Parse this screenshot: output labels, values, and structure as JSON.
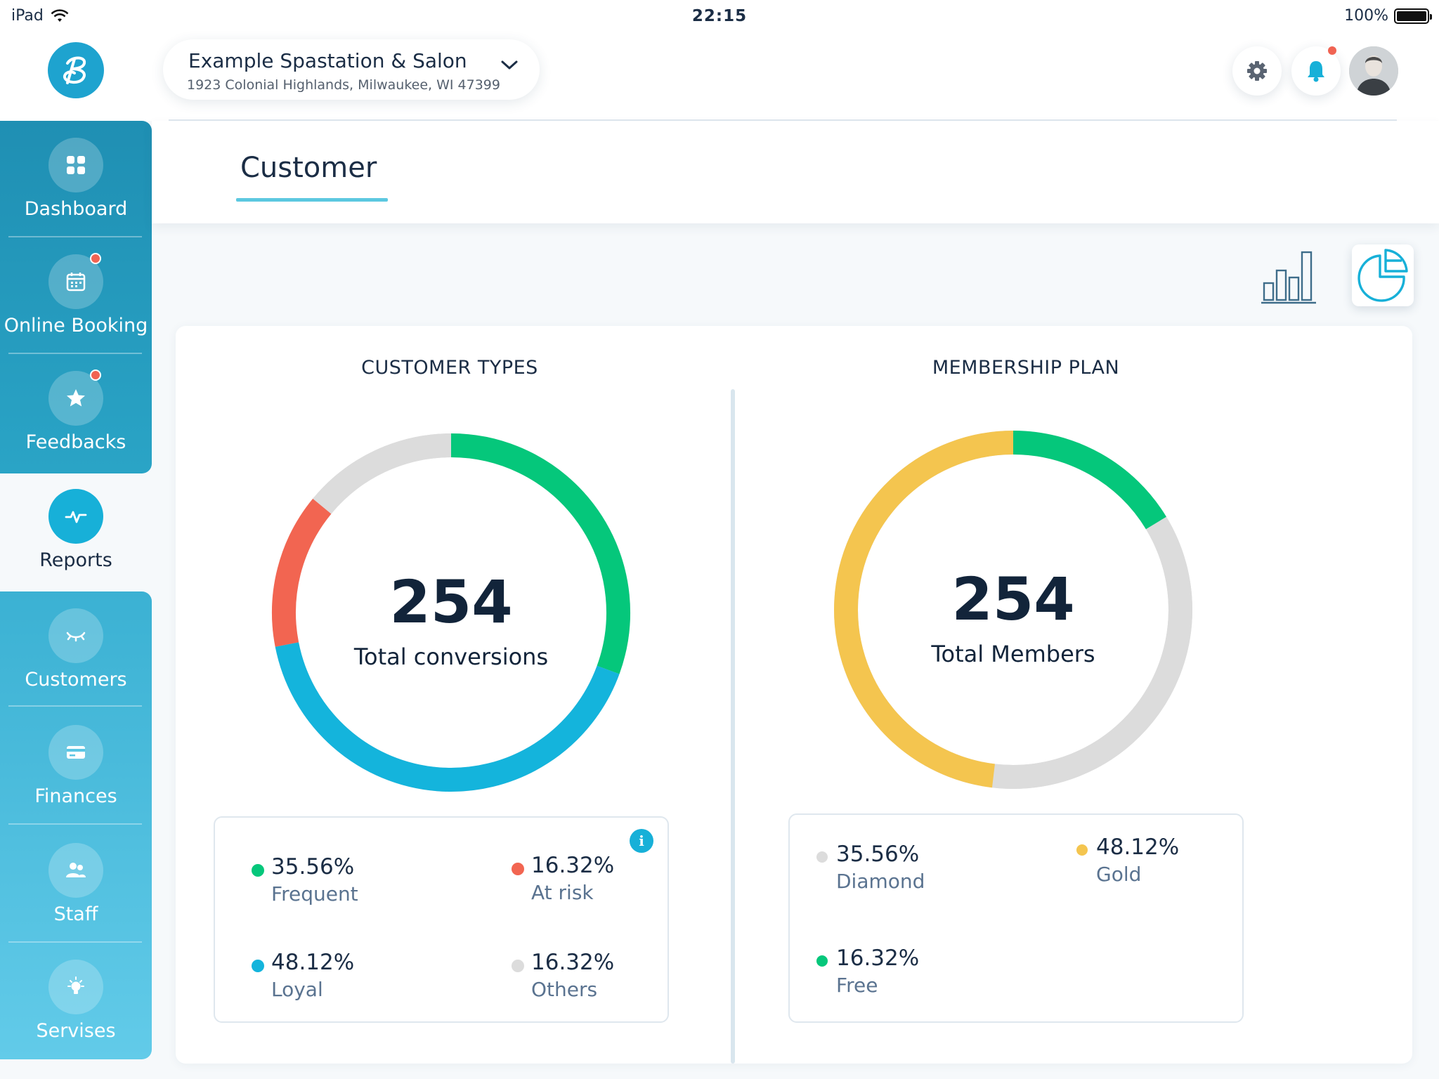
{
  "status_bar": {
    "device": "iPad",
    "time": "22:15",
    "battery": "100%"
  },
  "header": {
    "location_name": "Example Spastation & Salon",
    "location_address": "1923 Colonial Highlands, Milwaukee, WI 47399",
    "icons": [
      "settings-icon",
      "bell-icon",
      "avatar"
    ]
  },
  "sidebar": {
    "items": [
      {
        "label": "Dashboard",
        "icon": "grid-icon",
        "badge": false
      },
      {
        "label": "Online Booking",
        "icon": "calendar-icon",
        "badge": true
      },
      {
        "label": "Feedbacks",
        "icon": "star-icon",
        "badge": true
      },
      {
        "label": "Reports",
        "icon": "pulse-icon",
        "badge": false,
        "active": true
      },
      {
        "label": "Customers",
        "icon": "eye-closed-icon",
        "badge": false
      },
      {
        "label": "Finances",
        "icon": "card-icon",
        "badge": false
      },
      {
        "label": "Staff",
        "icon": "people-icon",
        "badge": false
      },
      {
        "label": "Servises",
        "icon": "bulb-icon",
        "badge": false
      }
    ]
  },
  "page": {
    "title": "Customer",
    "view_modes": [
      "bar-chart-icon",
      "pie-chart-icon"
    ],
    "active_view": "pie-chart-icon"
  },
  "colors": {
    "green": "#05c77b",
    "red": "#f26551",
    "blue": "#14b4dc",
    "grey": "#dcdcdc",
    "yellow": "#f4c54f",
    "accent": "#17b0d8"
  },
  "chart_data": [
    {
      "type": "pie",
      "title": "CUSTOMER TYPES",
      "total": "254",
      "total_label": "Total conversions",
      "series": [
        {
          "name": "Frequent",
          "value": 35.56,
          "label": "35.56%",
          "color": "#05c77b"
        },
        {
          "name": "Loyal",
          "value": 48.12,
          "label": "48.12%",
          "color": "#14b4dc"
        },
        {
          "name": "At risk",
          "value": 16.32,
          "label": "16.32%",
          "color": "#f26551"
        },
        {
          "name": "Others",
          "value": 16.32,
          "label": "16.32%",
          "color": "#dcdcdc"
        }
      ]
    },
    {
      "type": "pie",
      "title": "MEMBERSHIP PLAN",
      "total": "254",
      "total_label": "Total Members",
      "series": [
        {
          "name": "Diamond",
          "value": 35.56,
          "label": "35.56%",
          "color": "#dcdcdc"
        },
        {
          "name": "Gold",
          "value": 48.12,
          "label": "48.12%",
          "color": "#f4c54f"
        },
        {
          "name": "Free",
          "value": 16.32,
          "label": "16.32%",
          "color": "#05c77b"
        }
      ]
    }
  ]
}
